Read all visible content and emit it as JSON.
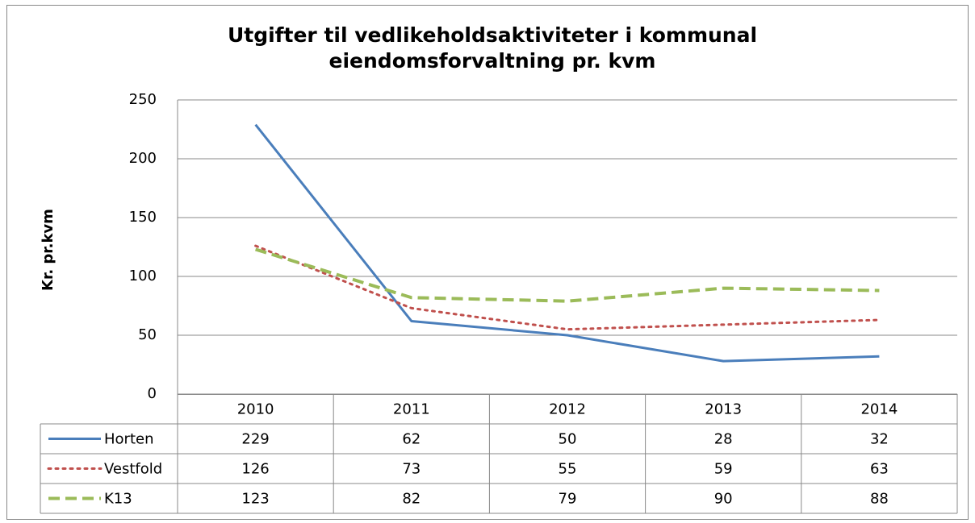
{
  "chart_data": {
    "type": "line",
    "title": "Utgifter til vedlikeholdsaktiviteter i kommunal eiendomsforvaltning pr. kvm",
    "y_label": "Kr. pr.kvm",
    "categories": [
      "2010",
      "2011",
      "2012",
      "2013",
      "2014"
    ],
    "series": [
      {
        "name": "Horten",
        "color": "#4a7ebb",
        "style": "solid",
        "values": [
          229,
          62,
          50,
          28,
          32
        ]
      },
      {
        "name": "Vestfold",
        "color": "#c0504d",
        "style": "dotted",
        "values": [
          126,
          73,
          55,
          59,
          63
        ]
      },
      {
        "name": "K13",
        "color": "#9bbb59",
        "style": "dashed",
        "values": [
          123,
          82,
          79,
          90,
          88
        ]
      }
    ],
    "ylim": [
      0,
      250
    ],
    "yticks": [
      0,
      50,
      100,
      150,
      200,
      250
    ],
    "grid": true
  }
}
